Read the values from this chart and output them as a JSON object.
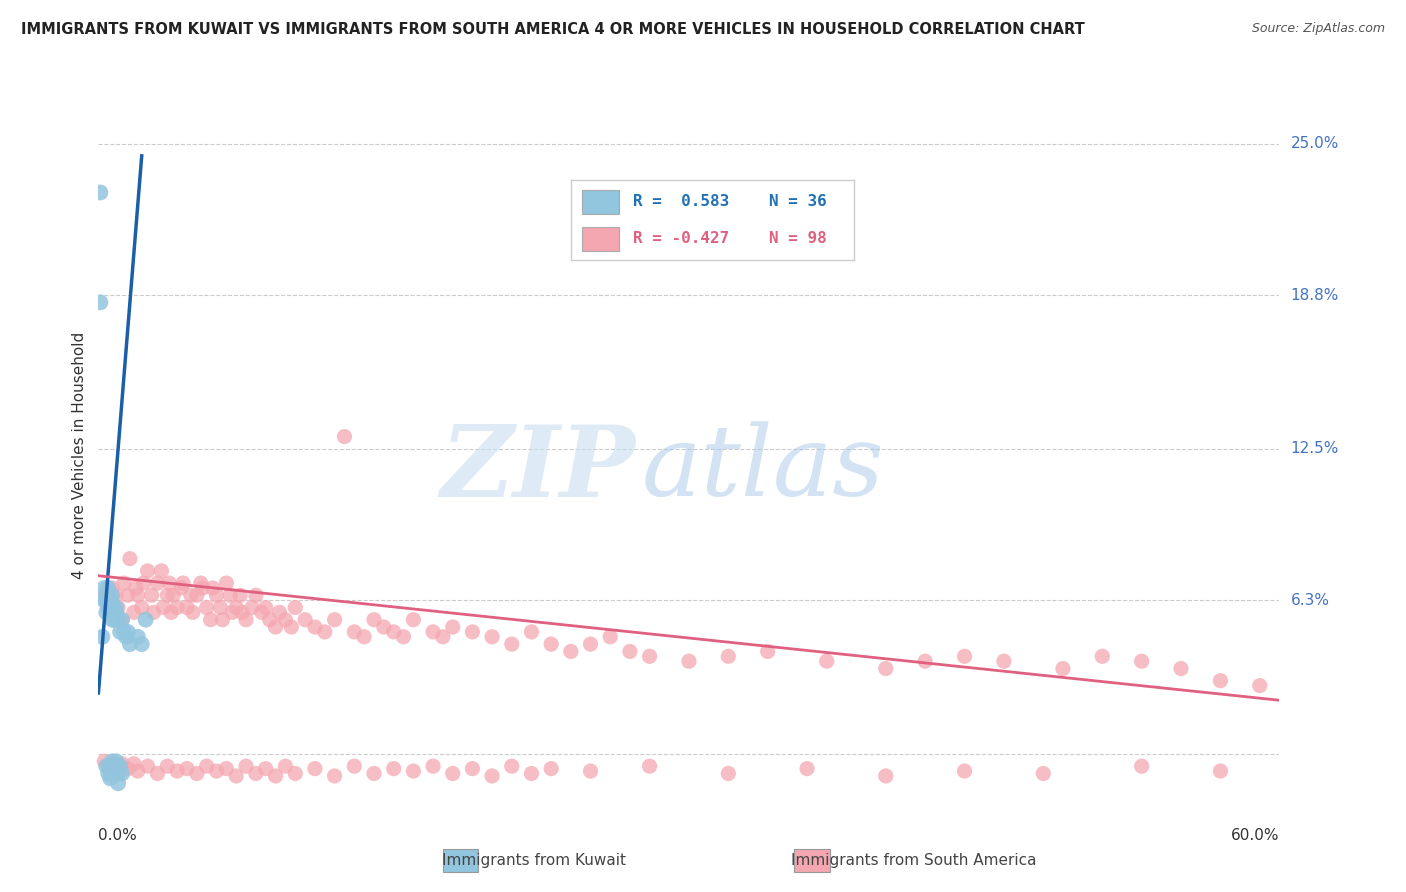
{
  "title": "IMMIGRANTS FROM KUWAIT VS IMMIGRANTS FROM SOUTH AMERICA 4 OR MORE VEHICLES IN HOUSEHOLD CORRELATION CHART",
  "source": "Source: ZipAtlas.com",
  "ylabel": "4 or more Vehicles in Household",
  "ytick_vals": [
    0.0,
    0.063,
    0.125,
    0.188,
    0.25
  ],
  "ytick_labels": [
    "",
    "6.3%",
    "12.5%",
    "18.8%",
    "25.0%"
  ],
  "xlim": [
    0.0,
    0.6
  ],
  "ylim": [
    -0.02,
    0.265
  ],
  "color_kuwait": "#92c5de",
  "color_south_america": "#f4a7b0",
  "color_kuwait_line": "#1a5fa8",
  "color_south_america_line": "#e06080",
  "background_color": "#ffffff",
  "watermark_zip": "ZIP",
  "watermark_atlas": "atlas",
  "legend_r1": "R =  0.583",
  "legend_n1": "N = 36",
  "legend_r2": "R = -0.427",
  "legend_n2": "N = 98",
  "kuwait_x": [
    0.001,
    0.001,
    0.002,
    0.003,
    0.003,
    0.004,
    0.004,
    0.004,
    0.005,
    0.005,
    0.005,
    0.005,
    0.006,
    0.006,
    0.006,
    0.007,
    0.007,
    0.007,
    0.007,
    0.007,
    0.008,
    0.008,
    0.009,
    0.009,
    0.01,
    0.011,
    0.012,
    0.013,
    0.014,
    0.015,
    0.016,
    0.02,
    0.022,
    0.024
  ],
  "kuwait_y": [
    0.23,
    0.185,
    0.048,
    0.063,
    0.068,
    0.058,
    0.062,
    0.065,
    0.06,
    0.062,
    0.065,
    0.068,
    0.058,
    0.06,
    0.063,
    0.055,
    0.058,
    0.06,
    0.062,
    0.065,
    0.055,
    0.058,
    0.058,
    0.06,
    0.055,
    0.05,
    0.055,
    0.05,
    0.048,
    0.05,
    0.045,
    0.048,
    0.045,
    0.055
  ],
  "kuwait_below_x": [
    0.004,
    0.005,
    0.006,
    0.006,
    0.007,
    0.007,
    0.008,
    0.009,
    0.01,
    0.01,
    0.011,
    0.012
  ],
  "kuwait_below_y": [
    -0.005,
    -0.008,
    -0.005,
    -0.01,
    -0.003,
    -0.008,
    -0.005,
    -0.003,
    -0.008,
    -0.012,
    -0.005,
    -0.008
  ],
  "sa_x": [
    0.003,
    0.005,
    0.007,
    0.009,
    0.01,
    0.012,
    0.013,
    0.015,
    0.016,
    0.018,
    0.019,
    0.02,
    0.022,
    0.023,
    0.025,
    0.027,
    0.028,
    0.03,
    0.032,
    0.033,
    0.035,
    0.036,
    0.037,
    0.038,
    0.04,
    0.042,
    0.043,
    0.045,
    0.047,
    0.048,
    0.05,
    0.052,
    0.053,
    0.055,
    0.057,
    0.058,
    0.06,
    0.062,
    0.063,
    0.065,
    0.067,
    0.068,
    0.07,
    0.072,
    0.073,
    0.075,
    0.078,
    0.08,
    0.083,
    0.085,
    0.087,
    0.09,
    0.092,
    0.095,
    0.098,
    0.1,
    0.105,
    0.11,
    0.115,
    0.12,
    0.125,
    0.13,
    0.135,
    0.14,
    0.145,
    0.15,
    0.155,
    0.16,
    0.17,
    0.175,
    0.18,
    0.19,
    0.2,
    0.21,
    0.22,
    0.23,
    0.24,
    0.25,
    0.26,
    0.27,
    0.28,
    0.3,
    0.32,
    0.34,
    0.37,
    0.4,
    0.42,
    0.44,
    0.46,
    0.49,
    0.51,
    0.53,
    0.55,
    0.57,
    0.59
  ],
  "sa_y": [
    0.065,
    0.06,
    0.068,
    0.065,
    0.06,
    0.055,
    0.07,
    0.065,
    0.08,
    0.058,
    0.068,
    0.065,
    0.06,
    0.07,
    0.075,
    0.065,
    0.058,
    0.07,
    0.075,
    0.06,
    0.065,
    0.07,
    0.058,
    0.065,
    0.06,
    0.068,
    0.07,
    0.06,
    0.065,
    0.058,
    0.065,
    0.07,
    0.068,
    0.06,
    0.055,
    0.068,
    0.065,
    0.06,
    0.055,
    0.07,
    0.065,
    0.058,
    0.06,
    0.065,
    0.058,
    0.055,
    0.06,
    0.065,
    0.058,
    0.06,
    0.055,
    0.052,
    0.058,
    0.055,
    0.052,
    0.06,
    0.055,
    0.052,
    0.05,
    0.055,
    0.13,
    0.05,
    0.048,
    0.055,
    0.052,
    0.05,
    0.048,
    0.055,
    0.05,
    0.048,
    0.052,
    0.05,
    0.048,
    0.045,
    0.05,
    0.045,
    0.042,
    0.045,
    0.048,
    0.042,
    0.04,
    0.038,
    0.04,
    0.042,
    0.038,
    0.035,
    0.038,
    0.04,
    0.038,
    0.035,
    0.04,
    0.038,
    0.035,
    0.03,
    0.028
  ],
  "sa_below_x": [
    0.003,
    0.005,
    0.007,
    0.01,
    0.012,
    0.015,
    0.018,
    0.02,
    0.025,
    0.03,
    0.035,
    0.04,
    0.045,
    0.05,
    0.055,
    0.06,
    0.065,
    0.07,
    0.075,
    0.08,
    0.085,
    0.09,
    0.095,
    0.1,
    0.11,
    0.12,
    0.13,
    0.14,
    0.15,
    0.16,
    0.17,
    0.18,
    0.19,
    0.2,
    0.21,
    0.22,
    0.23,
    0.25,
    0.28,
    0.32,
    0.36,
    0.4,
    0.44,
    0.48,
    0.53,
    0.57
  ],
  "sa_below_y": [
    -0.003,
    -0.005,
    -0.004,
    -0.006,
    -0.004,
    -0.006,
    -0.004,
    -0.007,
    -0.005,
    -0.008,
    -0.005,
    -0.007,
    -0.006,
    -0.008,
    -0.005,
    -0.007,
    -0.006,
    -0.009,
    -0.005,
    -0.008,
    -0.006,
    -0.009,
    -0.005,
    -0.008,
    -0.006,
    -0.009,
    -0.005,
    -0.008,
    -0.006,
    -0.007,
    -0.005,
    -0.008,
    -0.006,
    -0.009,
    -0.005,
    -0.008,
    -0.006,
    -0.007,
    -0.005,
    -0.008,
    -0.006,
    -0.009,
    -0.007,
    -0.008,
    -0.005,
    -0.007
  ],
  "kuwait_trend_x": [
    0.0,
    0.022
  ],
  "kuwait_trend_y": [
    0.025,
    0.245
  ],
  "sa_trend_x": [
    0.0,
    0.6
  ],
  "sa_trend_y": [
    0.073,
    0.022
  ]
}
